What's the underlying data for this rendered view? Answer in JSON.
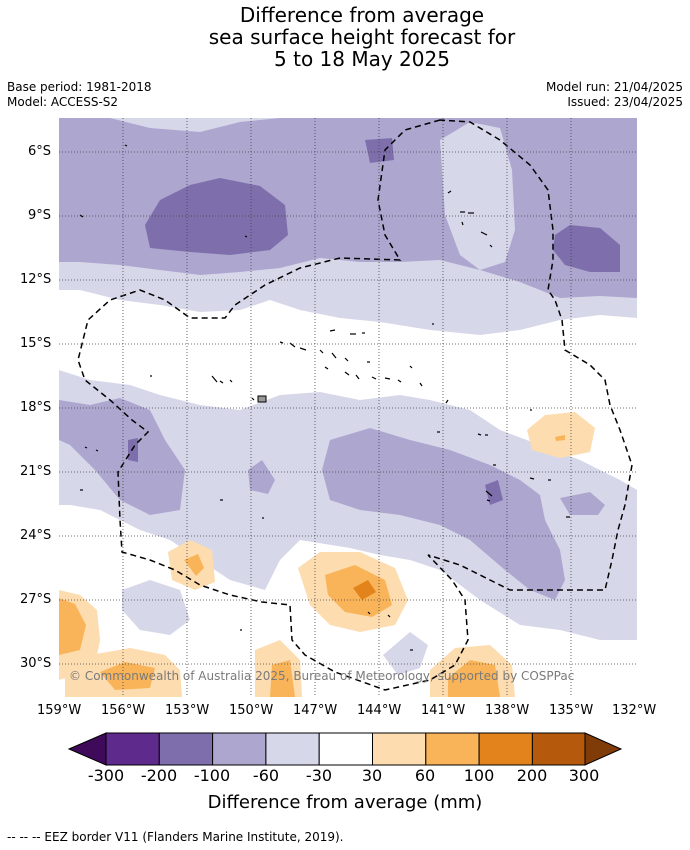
{
  "title": {
    "line1": "Difference from average",
    "line2": "sea surface height forecast for",
    "line3": "5 to 18 May 2025"
  },
  "meta": {
    "base_period": "Base period: 1981-2018",
    "model": "Model: ACCESS-S2",
    "model_run": "Model run: 21/04/2025",
    "issued": "Issued: 23/04/2025"
  },
  "copyright": "© Commonwealth of Australia 2025, Bureau of Meteorology, supported by COSPPac",
  "axes": {
    "lat_labels": [
      "6°S",
      "9°S",
      "12°S",
      "15°S",
      "18°S",
      "21°S",
      "24°S",
      "27°S",
      "30°S"
    ],
    "lon_labels": [
      "159°W",
      "156°W",
      "153°W",
      "150°W",
      "147°W",
      "144°W",
      "141°W",
      "138°W",
      "135°W",
      "132°W"
    ]
  },
  "colorbar": {
    "title": "Difference from average (mm)",
    "labels": [
      "-300",
      "-200",
      "-100",
      "-60",
      "-30",
      "30",
      "60",
      "100",
      "200",
      "300"
    ],
    "colors": [
      "#3f0a5a",
      "#5e2a8c",
      "#7e6fac",
      "#ada6cf",
      "#d7d7ea",
      "#ffffff",
      "#fddcaf",
      "#f9b45a",
      "#e2831b",
      "#b55a0c",
      "#7f3b08"
    ]
  },
  "footer": "--  --  -- EEZ border V11 (Flanders Marine Institute, 2019)."
}
